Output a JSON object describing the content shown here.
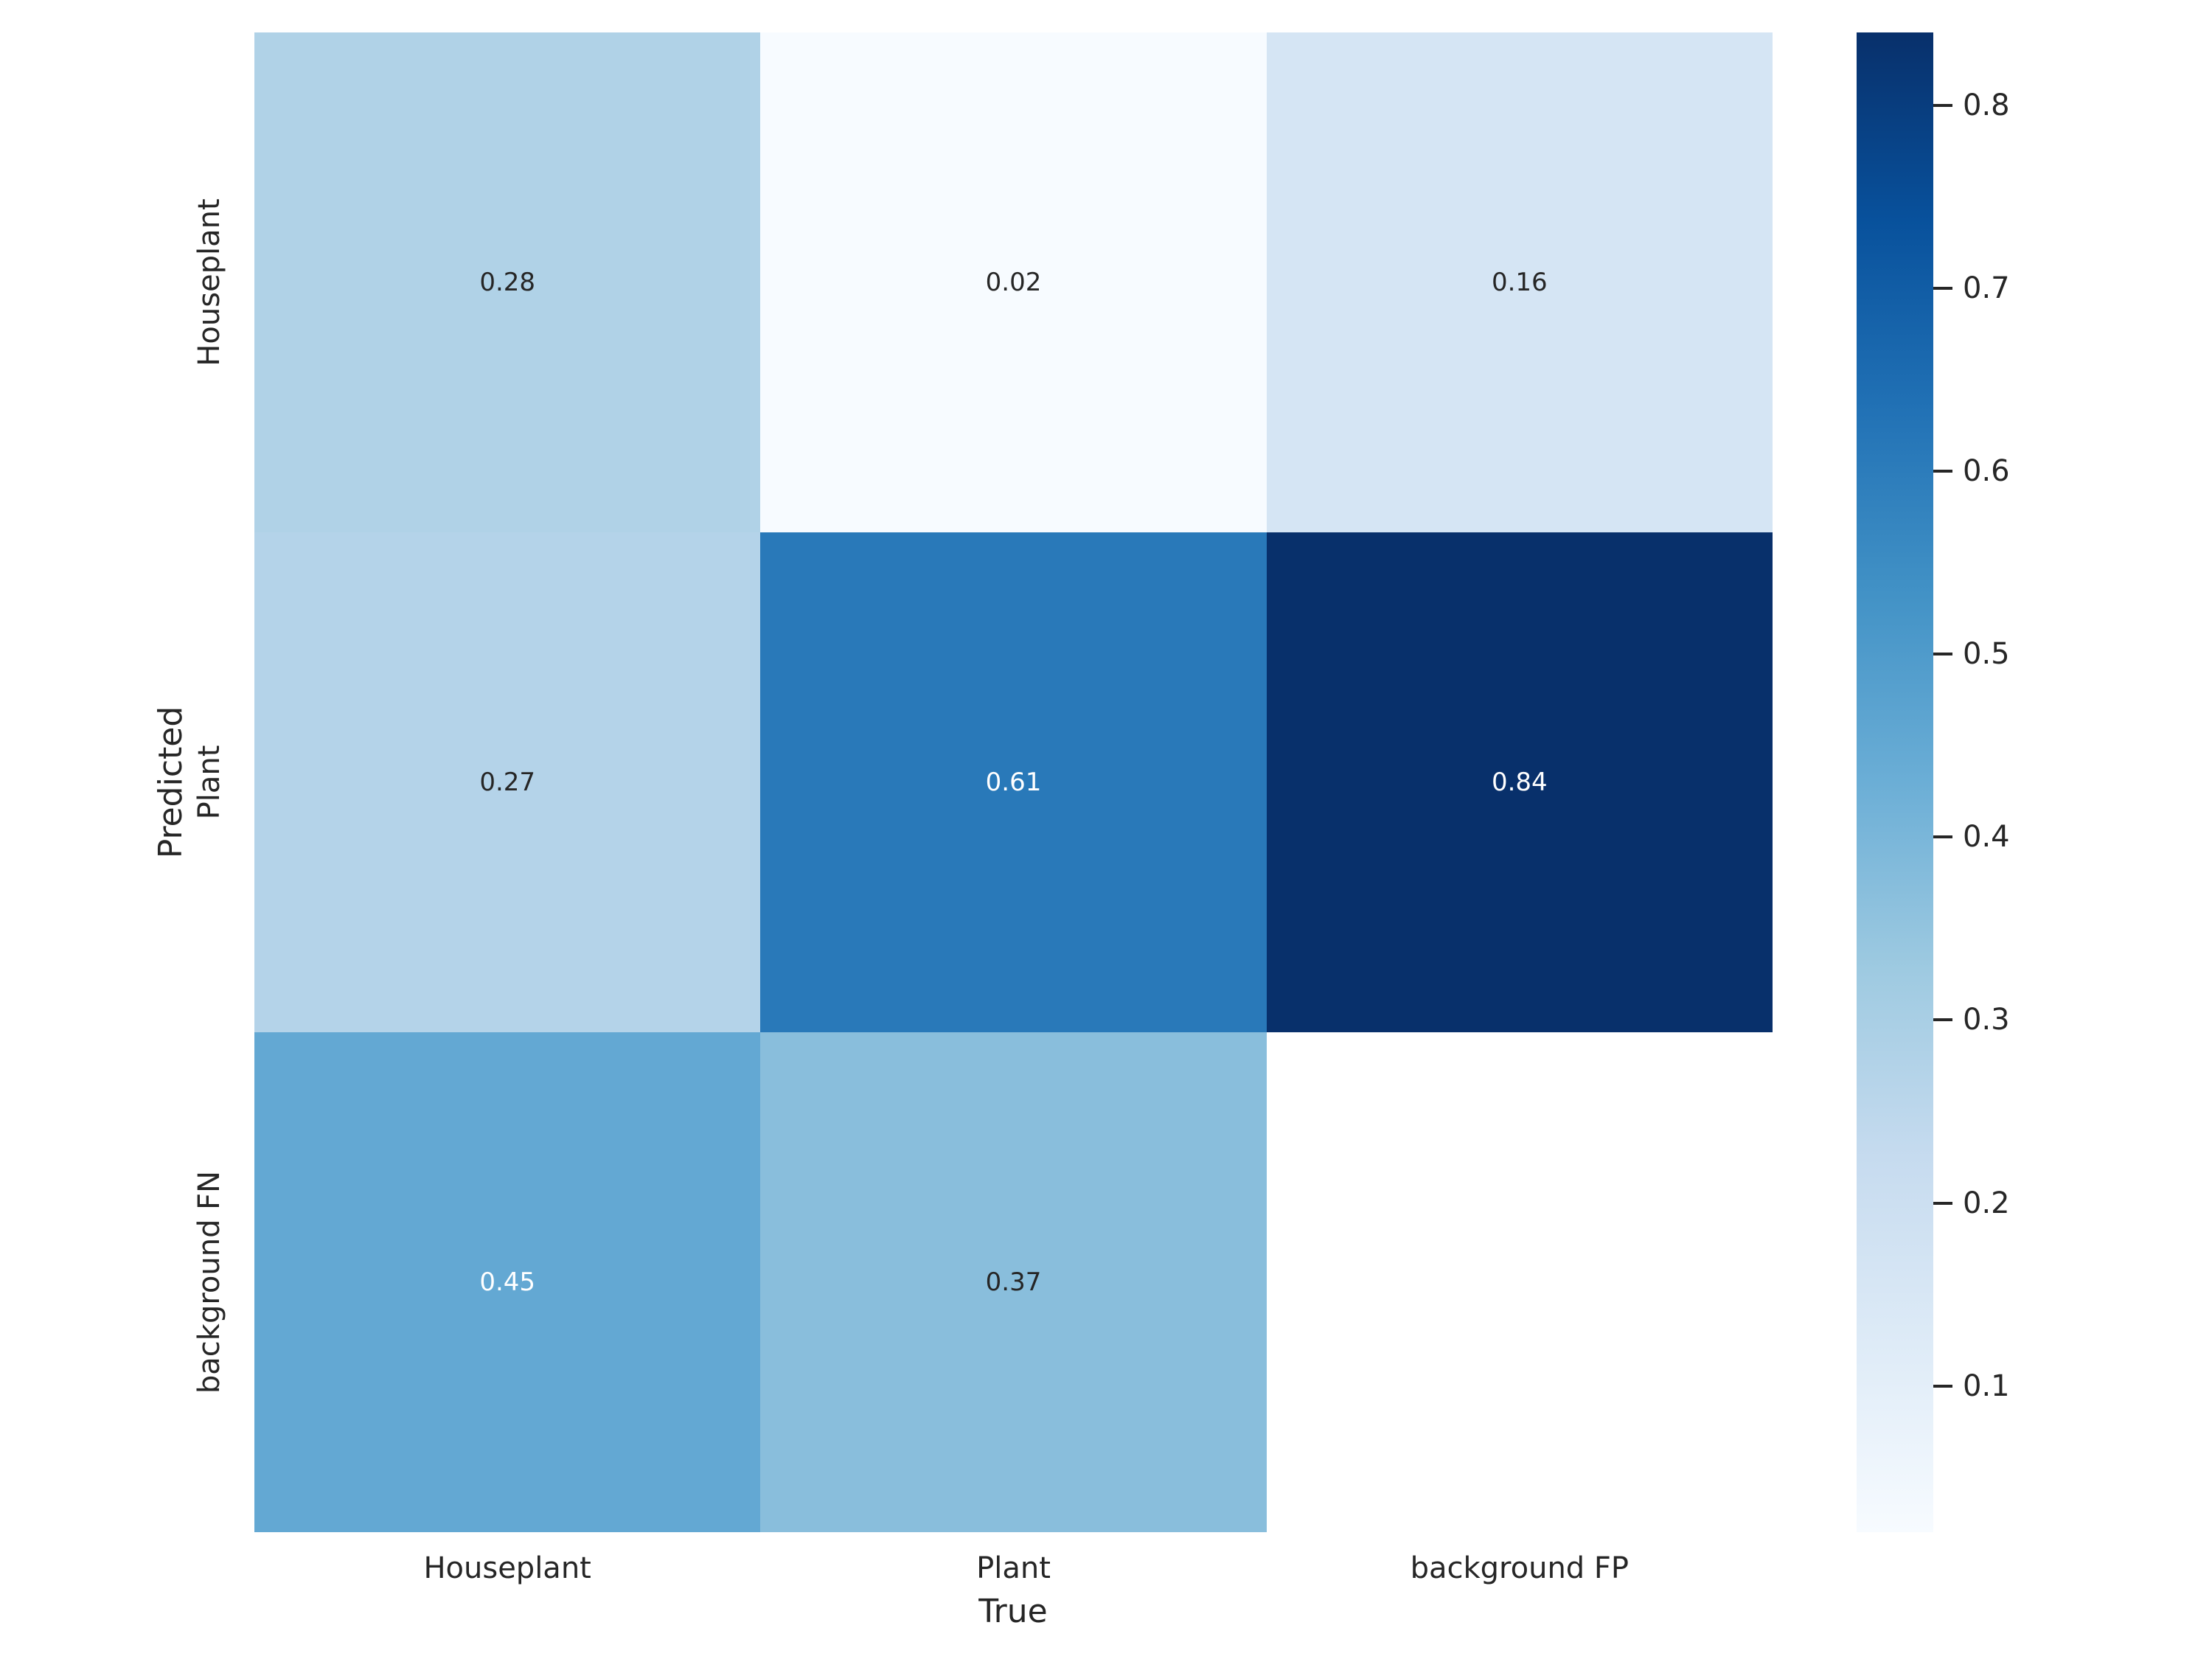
{
  "figure": {
    "background": "#ffffff",
    "text_color": "#262626"
  },
  "chart_data": {
    "type": "heatmap",
    "title": "",
    "xlabel": "True",
    "ylabel": "Predicted",
    "x_categories": [
      "Houseplant",
      "Plant",
      "background FP"
    ],
    "y_categories": [
      "Houseplant",
      "Plant",
      "background FN"
    ],
    "values": [
      [
        0.28,
        0.02,
        0.16
      ],
      [
        0.27,
        0.61,
        0.84
      ],
      [
        0.45,
        0.37,
        null
      ]
    ],
    "cell_labels": [
      [
        "0.28",
        "0.02",
        "0.16"
      ],
      [
        "0.27",
        "0.61",
        "0.84"
      ],
      [
        "0.45",
        "0.37",
        ""
      ]
    ],
    "cell_colors": [
      [
        "#b0d2e7",
        "#f7fbff",
        "#d5e5f4"
      ],
      [
        "#b4d3e9",
        "#2979b9",
        "#08306b"
      ],
      [
        "#63a8d3",
        "#89bedc",
        "#ffffff"
      ]
    ],
    "cell_text_colors": [
      [
        "#262626",
        "#262626",
        "#262626"
      ],
      [
        "#262626",
        "#ffffff",
        "#ffffff"
      ],
      [
        "#ffffff",
        "#262626",
        "#262626"
      ]
    ],
    "colormap": "Blues",
    "vmin": 0.02,
    "vmax": 0.84,
    "grid": false,
    "legend_position": "right-colorbar",
    "colorbar": {
      "tick_labels": [
        "0.8",
        "0.7",
        "0.6",
        "0.5",
        "0.4",
        "0.3",
        "0.2",
        "0.1"
      ],
      "ticks": [
        0.8,
        0.7,
        0.6,
        0.5,
        0.4,
        0.3,
        0.2,
        0.1
      ],
      "gradient_stops_top_to_bottom": [
        {
          "pos": 0.0,
          "color": "#08306b"
        },
        {
          "pos": 0.125,
          "color": "#08519c"
        },
        {
          "pos": 0.25,
          "color": "#2171b5"
        },
        {
          "pos": 0.375,
          "color": "#4292c6"
        },
        {
          "pos": 0.5,
          "color": "#6baed6"
        },
        {
          "pos": 0.625,
          "color": "#9ecae1"
        },
        {
          "pos": 0.75,
          "color": "#c6dbef"
        },
        {
          "pos": 0.875,
          "color": "#deebf7"
        },
        {
          "pos": 1.0,
          "color": "#f7fbff"
        }
      ]
    }
  }
}
